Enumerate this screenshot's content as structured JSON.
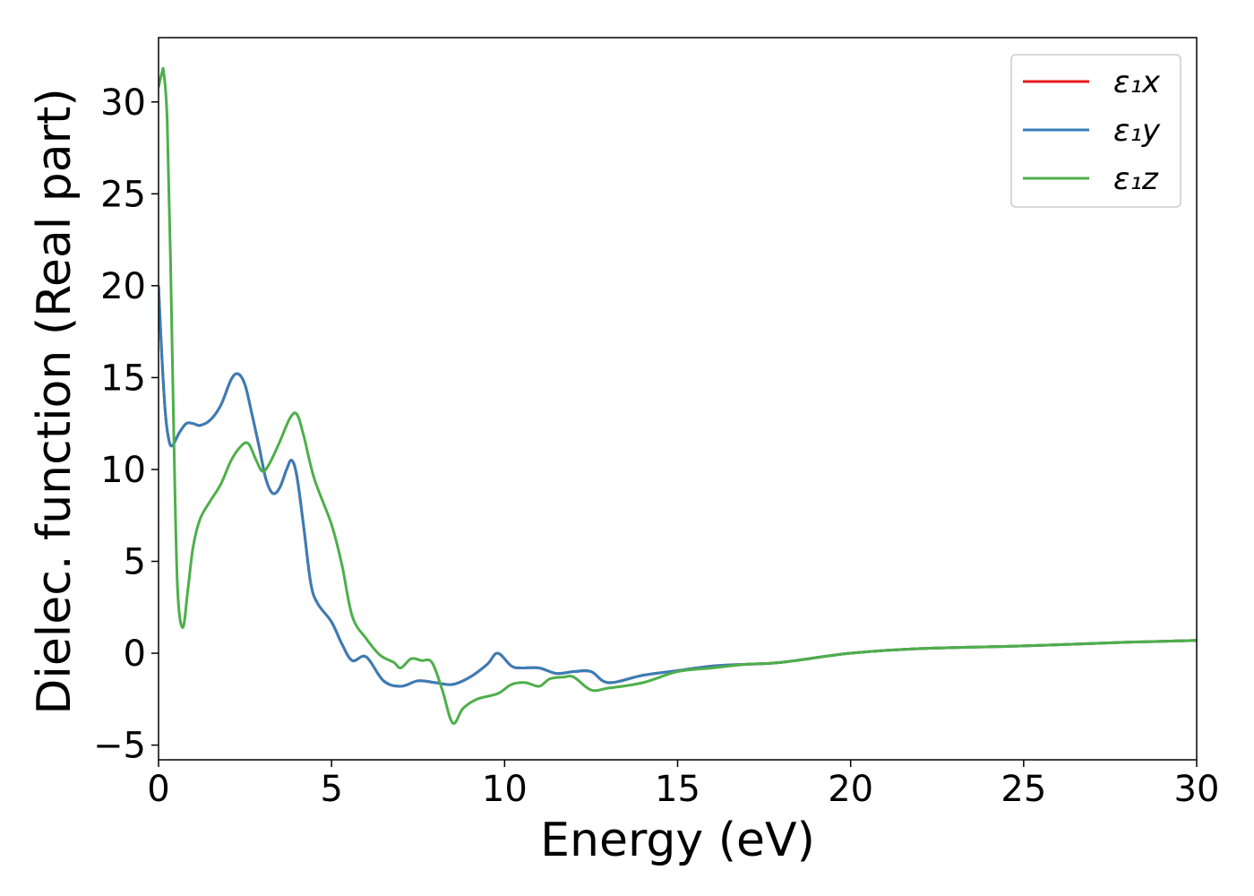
{
  "chart_data": {
    "type": "line",
    "xlabel": "Energy (eV)",
    "ylabel": "Dielec. function (Real part)",
    "xlim": [
      0,
      30
    ],
    "ylim": [
      -5.8,
      33.5
    ],
    "xticks": [
      0,
      5,
      10,
      15,
      20,
      25,
      30
    ],
    "xtick_labels": [
      "0",
      "5",
      "10",
      "15",
      "20",
      "25",
      "30"
    ],
    "yticks": [
      -5,
      0,
      5,
      10,
      15,
      20,
      25,
      30
    ],
    "ytick_labels": [
      "−5",
      "0",
      "5",
      "10",
      "15",
      "20",
      "25",
      "30"
    ],
    "grid": false,
    "legend_position": "top-right",
    "series": [
      {
        "name": "ε₁x",
        "color": "#e41a1c",
        "x": [
          0,
          0.1,
          0.2,
          0.3,
          0.4,
          0.6,
          0.8,
          1.0,
          1.2,
          1.5,
          1.8,
          2.1,
          2.3,
          2.5,
          2.7,
          2.9,
          3.1,
          3.3,
          3.5,
          3.7,
          3.85,
          4.0,
          4.2,
          4.4,
          4.6,
          5.0,
          5.3,
          5.6,
          6.0,
          6.5,
          7.0,
          7.5,
          8.0,
          8.5,
          9.0,
          9.5,
          9.8,
          10.2,
          10.5,
          11.0,
          11.5,
          12.0,
          12.5,
          13.0,
          14.0,
          15.0,
          16.0,
          17.0,
          18.0,
          20.0,
          22.0,
          25.0,
          28.0,
          30.0
        ],
        "y": [
          20.0,
          16.0,
          13.0,
          11.6,
          11.3,
          12.0,
          12.5,
          12.5,
          12.4,
          12.7,
          13.5,
          14.9,
          15.2,
          14.6,
          13.0,
          11.3,
          9.5,
          8.7,
          9.0,
          10.0,
          10.5,
          9.6,
          6.8,
          3.8,
          2.7,
          1.7,
          0.5,
          -0.4,
          -0.2,
          -1.5,
          -1.8,
          -1.5,
          -1.6,
          -1.7,
          -1.3,
          -0.6,
          0.0,
          -0.7,
          -0.8,
          -0.8,
          -1.1,
          -1.0,
          -1.0,
          -1.6,
          -1.2,
          -0.95,
          -0.7,
          -0.6,
          -0.5,
          0.0,
          0.25,
          0.4,
          0.6,
          0.7
        ]
      },
      {
        "name": "ε₁y",
        "color": "#377eb8",
        "x": [
          0,
          0.1,
          0.2,
          0.3,
          0.4,
          0.6,
          0.8,
          1.0,
          1.2,
          1.5,
          1.8,
          2.1,
          2.3,
          2.5,
          2.7,
          2.9,
          3.1,
          3.3,
          3.5,
          3.7,
          3.85,
          4.0,
          4.2,
          4.4,
          4.6,
          5.0,
          5.3,
          5.6,
          6.0,
          6.5,
          7.0,
          7.5,
          8.0,
          8.5,
          9.0,
          9.5,
          9.8,
          10.2,
          10.5,
          11.0,
          11.5,
          12.0,
          12.5,
          13.0,
          14.0,
          15.0,
          16.0,
          17.0,
          18.0,
          20.0,
          22.0,
          25.0,
          28.0,
          30.0
        ],
        "y": [
          20.0,
          16.0,
          13.0,
          11.6,
          11.3,
          12.0,
          12.5,
          12.5,
          12.4,
          12.7,
          13.5,
          14.9,
          15.2,
          14.6,
          13.0,
          11.3,
          9.5,
          8.7,
          9.0,
          10.0,
          10.5,
          9.6,
          6.8,
          3.8,
          2.7,
          1.7,
          0.5,
          -0.4,
          -0.2,
          -1.5,
          -1.8,
          -1.5,
          -1.6,
          -1.7,
          -1.3,
          -0.6,
          0.0,
          -0.7,
          -0.8,
          -0.8,
          -1.1,
          -1.0,
          -1.0,
          -1.6,
          -1.2,
          -0.95,
          -0.7,
          -0.6,
          -0.5,
          0.0,
          0.25,
          0.4,
          0.6,
          0.7
        ]
      },
      {
        "name": "ε₁z",
        "color": "#4daf4a",
        "x": [
          0,
          0.1,
          0.15,
          0.25,
          0.35,
          0.45,
          0.55,
          0.7,
          0.85,
          1.0,
          1.2,
          1.5,
          1.8,
          2.1,
          2.4,
          2.6,
          2.8,
          3.0,
          3.2,
          3.5,
          3.8,
          4.0,
          4.2,
          4.5,
          5.0,
          5.3,
          5.6,
          6.0,
          6.4,
          6.8,
          7.0,
          7.3,
          7.6,
          7.9,
          8.2,
          8.5,
          8.8,
          9.2,
          9.8,
          10.2,
          10.6,
          11.0,
          11.3,
          11.7,
          12.0,
          12.5,
          13.0,
          14.0,
          15.0,
          16.0,
          17.0,
          18.0,
          20.0,
          22.0,
          25.0,
          28.0,
          30.0
        ],
        "y": [
          30.8,
          31.6,
          31.6,
          29.0,
          21.0,
          11.0,
          3.5,
          1.4,
          3.5,
          5.8,
          7.3,
          8.3,
          9.2,
          10.5,
          11.3,
          11.4,
          10.6,
          9.9,
          10.3,
          11.5,
          12.8,
          13.0,
          11.8,
          9.5,
          7.0,
          4.8,
          2.0,
          0.8,
          -0.1,
          -0.5,
          -0.8,
          -0.3,
          -0.4,
          -0.5,
          -2.0,
          -3.8,
          -3.0,
          -2.5,
          -2.2,
          -1.7,
          -1.6,
          -1.8,
          -1.4,
          -1.3,
          -1.3,
          -2.0,
          -1.9,
          -1.6,
          -1.0,
          -0.8,
          -0.6,
          -0.5,
          0.0,
          0.25,
          0.4,
          0.6,
          0.7
        ]
      }
    ]
  }
}
